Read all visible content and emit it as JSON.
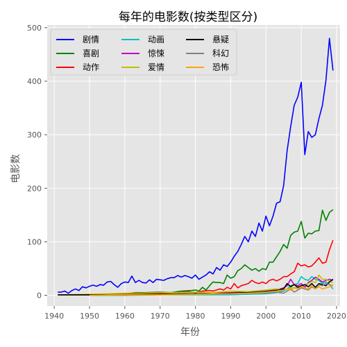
{
  "chart_data": {
    "type": "line",
    "title": "每年的电影数(按类型区分)",
    "xlabel": "年份",
    "ylabel": "电影数",
    "xlim": [
      1938,
      2021
    ],
    "ylim": [
      -20,
      505
    ],
    "xticks": [
      1940,
      1950,
      1960,
      1970,
      1980,
      1990,
      2000,
      2010,
      2020
    ],
    "yticks": [
      0,
      100,
      200,
      300,
      400,
      500
    ],
    "grid": true,
    "legend_position": "top-left",
    "series": [
      {
        "name": "剧情",
        "color": "#0000ff",
        "points": [
          [
            1941,
            6
          ],
          [
            1942,
            6
          ],
          [
            1943,
            8
          ],
          [
            1944,
            4
          ],
          [
            1945,
            9
          ],
          [
            1946,
            12
          ],
          [
            1947,
            9
          ],
          [
            1948,
            16
          ],
          [
            1949,
            14
          ],
          [
            1950,
            17
          ],
          [
            1951,
            19
          ],
          [
            1952,
            17
          ],
          [
            1953,
            20
          ],
          [
            1954,
            19
          ],
          [
            1955,
            25
          ],
          [
            1956,
            26
          ],
          [
            1957,
            20
          ],
          [
            1958,
            15
          ],
          [
            1959,
            22
          ],
          [
            1960,
            25
          ],
          [
            1961,
            24
          ],
          [
            1962,
            36
          ],
          [
            1963,
            24
          ],
          [
            1964,
            28
          ],
          [
            1965,
            24
          ],
          [
            1966,
            23
          ],
          [
            1967,
            29
          ],
          [
            1968,
            24
          ],
          [
            1969,
            30
          ],
          [
            1970,
            29
          ],
          [
            1971,
            28
          ],
          [
            1972,
            31
          ],
          [
            1973,
            33
          ],
          [
            1974,
            33
          ],
          [
            1975,
            37
          ],
          [
            1976,
            34
          ],
          [
            1977,
            37
          ],
          [
            1978,
            35
          ],
          [
            1979,
            32
          ],
          [
            1980,
            38
          ],
          [
            1981,
            30
          ],
          [
            1982,
            34
          ],
          [
            1983,
            38
          ],
          [
            1984,
            44
          ],
          [
            1985,
            40
          ],
          [
            1986,
            52
          ],
          [
            1987,
            47
          ],
          [
            1988,
            57
          ],
          [
            1989,
            54
          ],
          [
            1990,
            62
          ],
          [
            1991,
            73
          ],
          [
            1992,
            82
          ],
          [
            1993,
            95
          ],
          [
            1994,
            110
          ],
          [
            1995,
            100
          ],
          [
            1996,
            120
          ],
          [
            1997,
            110
          ],
          [
            1998,
            135
          ],
          [
            1999,
            120
          ],
          [
            2000,
            148
          ],
          [
            2001,
            130
          ],
          [
            2002,
            148
          ],
          [
            2003,
            172
          ],
          [
            2004,
            175
          ],
          [
            2005,
            205
          ],
          [
            2006,
            270
          ],
          [
            2007,
            315
          ],
          [
            2008,
            355
          ],
          [
            2009,
            370
          ],
          [
            2010,
            398
          ],
          [
            2011,
            263
          ],
          [
            2012,
            306
          ],
          [
            2013,
            295
          ],
          [
            2014,
            300
          ],
          [
            2015,
            330
          ],
          [
            2016,
            355
          ],
          [
            2017,
            402
          ],
          [
            2018,
            480
          ],
          [
            2019,
            420
          ]
        ]
      },
      {
        "name": "喜剧",
        "color": "#008000",
        "points": [
          [
            1941,
            1
          ],
          [
            1945,
            1
          ],
          [
            1950,
            1
          ],
          [
            1955,
            2
          ],
          [
            1957,
            3
          ],
          [
            1960,
            3
          ],
          [
            1963,
            5
          ],
          [
            1966,
            5
          ],
          [
            1970,
            6
          ],
          [
            1973,
            5
          ],
          [
            1976,
            8
          ],
          [
            1979,
            9
          ],
          [
            1980,
            10
          ],
          [
            1981,
            8
          ],
          [
            1982,
            15
          ],
          [
            1983,
            10
          ],
          [
            1984,
            18
          ],
          [
            1985,
            25
          ],
          [
            1986,
            24
          ],
          [
            1987,
            24
          ],
          [
            1988,
            22
          ],
          [
            1989,
            38
          ],
          [
            1990,
            32
          ],
          [
            1991,
            35
          ],
          [
            1992,
            46
          ],
          [
            1993,
            50
          ],
          [
            1994,
            57
          ],
          [
            1995,
            52
          ],
          [
            1996,
            47
          ],
          [
            1997,
            50
          ],
          [
            1998,
            45
          ],
          [
            1999,
            50
          ],
          [
            2000,
            48
          ],
          [
            2001,
            62
          ],
          [
            2002,
            62
          ],
          [
            2003,
            72
          ],
          [
            2004,
            82
          ],
          [
            2005,
            95
          ],
          [
            2006,
            88
          ],
          [
            2007,
            112
          ],
          [
            2008,
            118
          ],
          [
            2009,
            120
          ],
          [
            2010,
            138
          ],
          [
            2011,
            107
          ],
          [
            2012,
            116
          ],
          [
            2013,
            115
          ],
          [
            2014,
            120
          ],
          [
            2015,
            121
          ],
          [
            2016,
            159
          ],
          [
            2017,
            140
          ],
          [
            2018,
            155
          ],
          [
            2019,
            160
          ]
        ]
      },
      {
        "name": "动作",
        "color": "#ff0000",
        "points": [
          [
            1941,
            1
          ],
          [
            1950,
            1
          ],
          [
            1955,
            1
          ],
          [
            1960,
            2
          ],
          [
            1965,
            3
          ],
          [
            1970,
            4
          ],
          [
            1975,
            5
          ],
          [
            1978,
            7
          ],
          [
            1980,
            5
          ],
          [
            1982,
            8
          ],
          [
            1984,
            9
          ],
          [
            1985,
            8
          ],
          [
            1986,
            10
          ],
          [
            1987,
            12
          ],
          [
            1988,
            10
          ],
          [
            1989,
            15
          ],
          [
            1990,
            12
          ],
          [
            1991,
            22
          ],
          [
            1992,
            14
          ],
          [
            1993,
            18
          ],
          [
            1994,
            20
          ],
          [
            1995,
            22
          ],
          [
            1996,
            28
          ],
          [
            1997,
            24
          ],
          [
            1998,
            22
          ],
          [
            1999,
            25
          ],
          [
            2000,
            22
          ],
          [
            2001,
            28
          ],
          [
            2002,
            30
          ],
          [
            2003,
            27
          ],
          [
            2004,
            30
          ],
          [
            2005,
            35
          ],
          [
            2006,
            35
          ],
          [
            2007,
            40
          ],
          [
            2008,
            44
          ],
          [
            2009,
            60
          ],
          [
            2010,
            55
          ],
          [
            2011,
            57
          ],
          [
            2012,
            53
          ],
          [
            2013,
            55
          ],
          [
            2014,
            62
          ],
          [
            2015,
            70
          ],
          [
            2016,
            60
          ],
          [
            2017,
            62
          ],
          [
            2018,
            85
          ],
          [
            2019,
            103
          ]
        ]
      },
      {
        "name": "动画",
        "color": "#00bfbf",
        "points": [
          [
            1950,
            0
          ],
          [
            1960,
            0
          ],
          [
            1970,
            1
          ],
          [
            1980,
            1
          ],
          [
            1990,
            1
          ],
          [
            1995,
            2
          ],
          [
            2000,
            3
          ],
          [
            2003,
            5
          ],
          [
            2005,
            8
          ],
          [
            2006,
            12
          ],
          [
            2007,
            18
          ],
          [
            2008,
            20
          ],
          [
            2009,
            22
          ],
          [
            2010,
            35
          ],
          [
            2011,
            30
          ],
          [
            2012,
            28
          ],
          [
            2013,
            35
          ],
          [
            2014,
            30
          ],
          [
            2015,
            28
          ],
          [
            2016,
            22
          ],
          [
            2017,
            25
          ],
          [
            2018,
            20
          ],
          [
            2019,
            12
          ]
        ]
      },
      {
        "name": "惊悚",
        "color": "#bf00bf",
        "points": [
          [
            1950,
            1
          ],
          [
            1960,
            1
          ],
          [
            1970,
            2
          ],
          [
            1980,
            3
          ],
          [
            1985,
            4
          ],
          [
            1990,
            5
          ],
          [
            1995,
            6
          ],
          [
            2000,
            8
          ],
          [
            2003,
            10
          ],
          [
            2005,
            14
          ],
          [
            2006,
            18
          ],
          [
            2007,
            30
          ],
          [
            2008,
            20
          ],
          [
            2009,
            18
          ],
          [
            2010,
            22
          ],
          [
            2011,
            15
          ],
          [
            2012,
            24
          ],
          [
            2013,
            28
          ],
          [
            2014,
            34
          ],
          [
            2015,
            30
          ],
          [
            2016,
            25
          ],
          [
            2017,
            28
          ],
          [
            2018,
            30
          ],
          [
            2019,
            28
          ]
        ]
      },
      {
        "name": "爱情",
        "color": "#bfbf00",
        "points": [
          [
            1941,
            1
          ],
          [
            1950,
            2
          ],
          [
            1955,
            3
          ],
          [
            1960,
            4
          ],
          [
            1965,
            4
          ],
          [
            1970,
            5
          ],
          [
            1975,
            5
          ],
          [
            1980,
            6
          ],
          [
            1985,
            5
          ],
          [
            1990,
            8
          ],
          [
            1995,
            7
          ],
          [
            2000,
            10
          ],
          [
            2003,
            12
          ],
          [
            2005,
            10
          ],
          [
            2007,
            14
          ],
          [
            2009,
            15
          ],
          [
            2010,
            18
          ],
          [
            2012,
            22
          ],
          [
            2013,
            26
          ],
          [
            2014,
            24
          ],
          [
            2015,
            38
          ],
          [
            2016,
            30
          ],
          [
            2017,
            30
          ],
          [
            2018,
            26
          ],
          [
            2019,
            24
          ]
        ]
      },
      {
        "name": "悬疑",
        "color": "#000000",
        "points": [
          [
            1941,
            1
          ],
          [
            1950,
            1
          ],
          [
            1960,
            1
          ],
          [
            1970,
            2
          ],
          [
            1980,
            3
          ],
          [
            1985,
            3
          ],
          [
            1990,
            4
          ],
          [
            1995,
            5
          ],
          [
            2000,
            7
          ],
          [
            2003,
            9
          ],
          [
            2005,
            12
          ],
          [
            2006,
            22
          ],
          [
            2007,
            16
          ],
          [
            2008,
            20
          ],
          [
            2009,
            15
          ],
          [
            2010,
            18
          ],
          [
            2011,
            20
          ],
          [
            2012,
            16
          ],
          [
            2013,
            22
          ],
          [
            2014,
            15
          ],
          [
            2015,
            22
          ],
          [
            2016,
            20
          ],
          [
            2017,
            18
          ],
          [
            2018,
            25
          ],
          [
            2019,
            30
          ]
        ]
      },
      {
        "name": "科幻",
        "color": "#808080",
        "points": [
          [
            1950,
            0
          ],
          [
            1960,
            1
          ],
          [
            1970,
            1
          ],
          [
            1980,
            2
          ],
          [
            1990,
            3
          ],
          [
            1995,
            4
          ],
          [
            2000,
            5
          ],
          [
            2003,
            6
          ],
          [
            2005,
            4
          ],
          [
            2006,
            8
          ],
          [
            2007,
            12
          ],
          [
            2008,
            6
          ],
          [
            2009,
            10
          ],
          [
            2010,
            14
          ],
          [
            2011,
            12
          ],
          [
            2012,
            10
          ],
          [
            2013,
            16
          ],
          [
            2014,
            12
          ],
          [
            2015,
            20
          ],
          [
            2016,
            18
          ],
          [
            2017,
            22
          ],
          [
            2018,
            20
          ],
          [
            2019,
            18
          ]
        ]
      },
      {
        "name": "恐怖",
        "color": "#ffa500",
        "points": [
          [
            1950,
            0
          ],
          [
            1960,
            1
          ],
          [
            1970,
            1
          ],
          [
            1980,
            2
          ],
          [
            1985,
            3
          ],
          [
            1990,
            3
          ],
          [
            1995,
            4
          ],
          [
            2000,
            6
          ],
          [
            2003,
            8
          ],
          [
            2005,
            10
          ],
          [
            2006,
            12
          ],
          [
            2007,
            10
          ],
          [
            2008,
            14
          ],
          [
            2009,
            12
          ],
          [
            2010,
            16
          ],
          [
            2011,
            14
          ],
          [
            2012,
            12
          ],
          [
            2013,
            18
          ],
          [
            2014,
            12
          ],
          [
            2015,
            16
          ],
          [
            2016,
            12
          ],
          [
            2017,
            14
          ],
          [
            2018,
            16
          ],
          [
            2019,
            20
          ]
        ]
      }
    ]
  }
}
